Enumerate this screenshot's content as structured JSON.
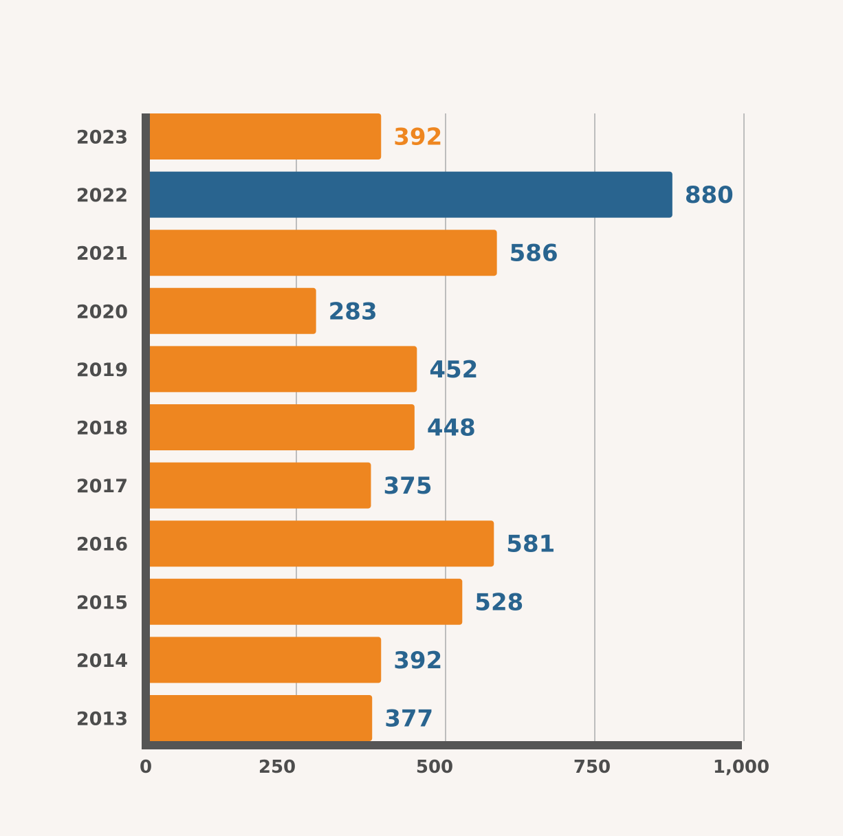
{
  "chart_data": {
    "type": "bar",
    "orientation": "horizontal",
    "title": "",
    "xlabel": "",
    "ylabel": "",
    "xlim": [
      0,
      1000
    ],
    "grid": true,
    "categories": [
      "2023",
      "2022",
      "2021",
      "2020",
      "2019",
      "2018",
      "2017",
      "2016",
      "2015",
      "2014",
      "2013"
    ],
    "values": [
      392,
      880,
      586,
      283,
      452,
      448,
      375,
      581,
      528,
      392,
      377
    ],
    "value_labels": [
      "392",
      "880",
      "586",
      "283",
      "452",
      "448",
      "375",
      "581",
      "528",
      "392",
      "377"
    ],
    "highlight_category": "2022",
    "x_ticks": [
      0,
      250,
      500,
      750,
      1000
    ],
    "x_tick_labels": [
      "0",
      "250",
      "500",
      "750",
      "1,000"
    ],
    "colors": {
      "bar": "#ee8620",
      "highlight_bar": "#29648f",
      "value_label": "#29648f",
      "first_value_label": "#ee8620",
      "axis": "#555555",
      "grid": "#bdbdbd",
      "background": "#f9f5f2",
      "text": "#4d4d4d"
    }
  }
}
